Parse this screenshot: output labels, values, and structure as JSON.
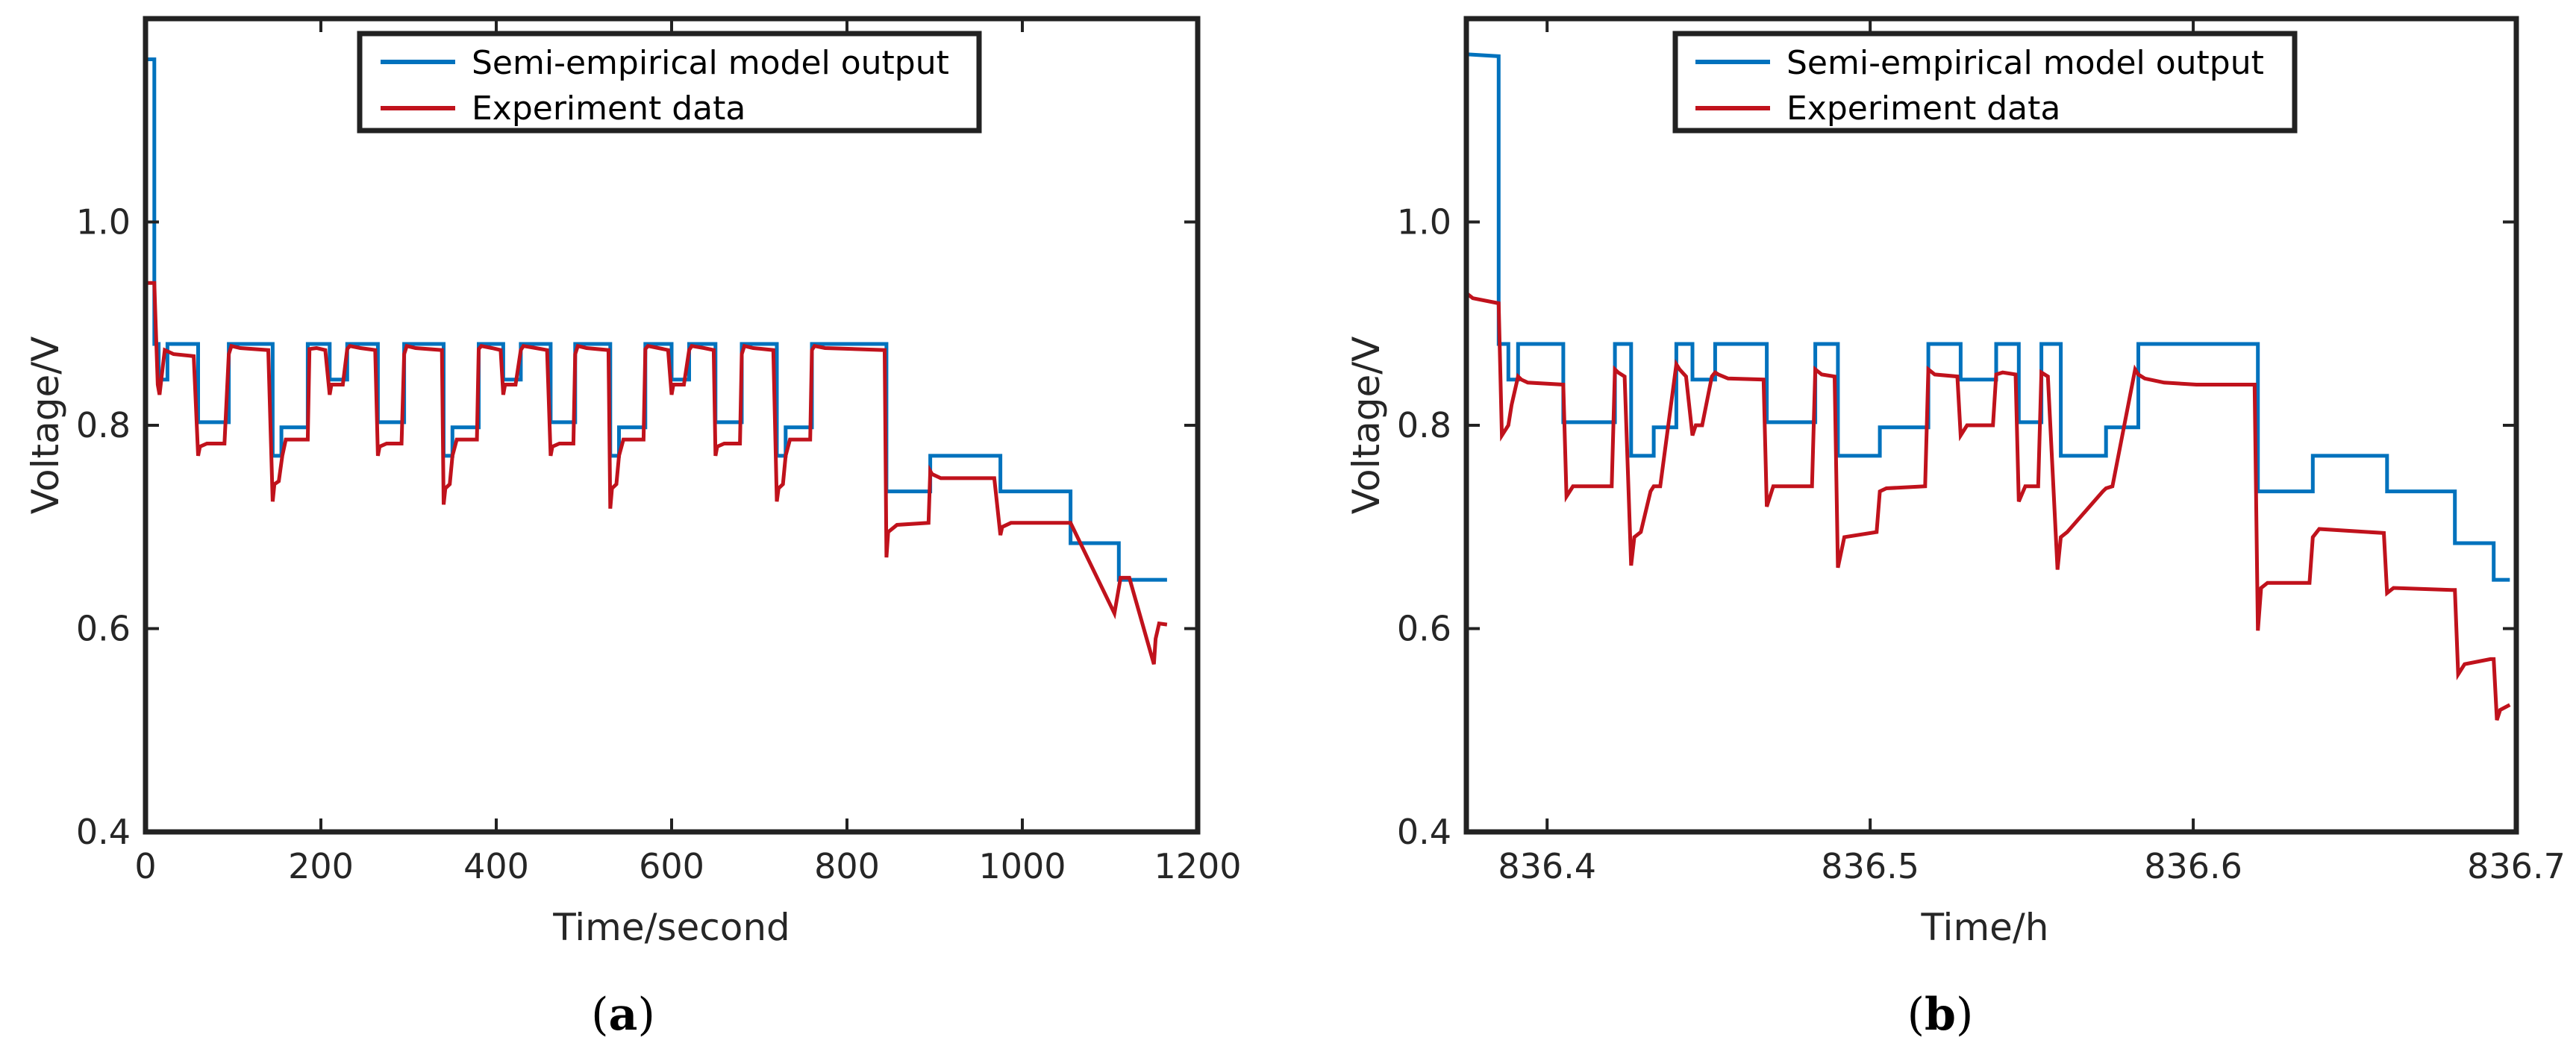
{
  "figure_captions": [
    {
      "open": "(",
      "letter": "a",
      "close": ")"
    },
    {
      "open": "(",
      "letter": "b",
      "close": ")"
    }
  ],
  "colors": {
    "model": "#0072BD",
    "experiment": "#C0121C"
  },
  "chart_data": [
    {
      "type": "line",
      "xlabel": "Time/second",
      "ylabel": "Voltage/V",
      "xlim": [
        0,
        1200
      ],
      "ylim": [
        0.4,
        1.2
      ],
      "xticks": [
        0,
        200,
        400,
        600,
        800,
        1000,
        1200
      ],
      "xtick_labels": [
        "0",
        "200",
        "400",
        "600",
        "800",
        "1000",
        "1200"
      ],
      "yticks": [
        0.4,
        0.6,
        0.8,
        1.0
      ],
      "ytick_labels": [
        "0.4",
        "0.6",
        "0.8",
        "1.0"
      ],
      "legend": [
        "Semi-empirical model output",
        "Experiment data"
      ],
      "legend_position": "top-center",
      "series": [
        {
          "name": "Semi-empirical model output",
          "color": "#0072BD",
          "x": [
            0,
            10,
            10,
            15,
            15,
            25,
            25,
            60,
            60,
            95,
            95,
            145,
            145,
            155,
            155,
            185,
            185,
            210,
            210,
            230,
            230,
            265,
            265,
            295,
            295,
            340,
            340,
            350,
            350,
            380,
            380,
            408,
            408,
            428,
            428,
            462,
            462,
            490,
            490,
            530,
            530,
            540,
            540,
            570,
            570,
            600,
            600,
            620,
            620,
            650,
            650,
            680,
            680,
            720,
            720,
            730,
            730,
            760,
            760,
            845,
            845,
            895,
            895,
            975,
            975,
            1055,
            1055,
            1110,
            1110,
            1165
          ],
          "y": [
            1.16,
            1.16,
            0.88,
            0.88,
            0.845,
            0.845,
            0.88,
            0.88,
            0.803,
            0.803,
            0.88,
            0.88,
            0.77,
            0.77,
            0.798,
            0.798,
            0.88,
            0.88,
            0.845,
            0.845,
            0.88,
            0.88,
            0.803,
            0.803,
            0.88,
            0.88,
            0.77,
            0.77,
            0.798,
            0.798,
            0.88,
            0.88,
            0.845,
            0.845,
            0.88,
            0.88,
            0.803,
            0.803,
            0.88,
            0.88,
            0.77,
            0.77,
            0.798,
            0.798,
            0.88,
            0.88,
            0.845,
            0.845,
            0.88,
            0.88,
            0.803,
            0.803,
            0.88,
            0.88,
            0.77,
            0.77,
            0.798,
            0.798,
            0.88,
            0.88,
            0.735,
            0.735,
            0.77,
            0.77,
            0.735,
            0.735,
            0.684,
            0.684,
            0.648,
            0.648
          ]
        },
        {
          "name": "Experiment data",
          "color": "#C0121C",
          "x": [
            0,
            10,
            11,
            14,
            16,
            20,
            22,
            27,
            32,
            55,
            60,
            62,
            70,
            90,
            95,
            98,
            108,
            140,
            145,
            147,
            152,
            156,
            160,
            185,
            187,
            195,
            205,
            210,
            212,
            225,
            230,
            233,
            245,
            262,
            265,
            267,
            275,
            292,
            295,
            298,
            308,
            338,
            340,
            342,
            347,
            350,
            355,
            378,
            380,
            383,
            395,
            405,
            408,
            410,
            422,
            428,
            431,
            445,
            458,
            462,
            464,
            472,
            488,
            490,
            493,
            503,
            528,
            530,
            532,
            537,
            540,
            545,
            568,
            570,
            573,
            585,
            596,
            600,
            602,
            614,
            620,
            623,
            637,
            648,
            650,
            652,
            660,
            678,
            680,
            683,
            693,
            716,
            720,
            722,
            727,
            730,
            735,
            758,
            760,
            763,
            775,
            843,
            845,
            847,
            857,
            893,
            895,
            897,
            907,
            968,
            975,
            977,
            987,
            1055,
            1105,
            1110,
            1112,
            1122,
            1150,
            1152,
            1156,
            1165
          ],
          "y": [
            0.94,
            0.94,
            0.915,
            0.84,
            0.83,
            0.86,
            0.874,
            0.872,
            0.87,
            0.868,
            0.77,
            0.779,
            0.782,
            0.782,
            0.87,
            0.878,
            0.876,
            0.874,
            0.725,
            0.742,
            0.745,
            0.77,
            0.786,
            0.786,
            0.875,
            0.876,
            0.874,
            0.83,
            0.84,
            0.84,
            0.875,
            0.878,
            0.876,
            0.874,
            0.77,
            0.779,
            0.782,
            0.782,
            0.87,
            0.878,
            0.876,
            0.874,
            0.722,
            0.738,
            0.742,
            0.77,
            0.786,
            0.786,
            0.875,
            0.878,
            0.876,
            0.874,
            0.83,
            0.84,
            0.84,
            0.874,
            0.878,
            0.876,
            0.874,
            0.77,
            0.779,
            0.782,
            0.782,
            0.87,
            0.878,
            0.876,
            0.874,
            0.718,
            0.738,
            0.742,
            0.77,
            0.786,
            0.786,
            0.875,
            0.878,
            0.876,
            0.874,
            0.83,
            0.84,
            0.84,
            0.874,
            0.878,
            0.876,
            0.874,
            0.77,
            0.779,
            0.782,
            0.782,
            0.87,
            0.878,
            0.876,
            0.874,
            0.725,
            0.738,
            0.742,
            0.77,
            0.786,
            0.786,
            0.874,
            0.878,
            0.876,
            0.874,
            0.67,
            0.695,
            0.702,
            0.704,
            0.755,
            0.752,
            0.748,
            0.748,
            0.692,
            0.7,
            0.704,
            0.704,
            0.615,
            0.64,
            0.65,
            0.65,
            0.565,
            0.59,
            0.605,
            0.604
          ]
        }
      ]
    },
    {
      "type": "line",
      "xlabel": "Time/h",
      "ylabel": "Voltage/V",
      "xlim": [
        836.375,
        836.7
      ],
      "ylim": [
        0.4,
        1.2
      ],
      "xticks": [
        836.4,
        836.5,
        836.6,
        836.7
      ],
      "xtick_labels": [
        "836.4",
        "836.5",
        "836.6",
        "836.7"
      ],
      "yticks": [
        0.4,
        0.6,
        0.8,
        1.0
      ],
      "ytick_labels": [
        "0.4",
        "0.6",
        "0.8",
        "1.0"
      ],
      "legend": [
        "Semi-empirical model output",
        "Experiment data"
      ],
      "legend_position": "top-center",
      "series": [
        {
          "name": "Semi-empirical model output",
          "color": "#0072BD",
          "x": [
            836.375,
            836.385,
            836.385,
            836.388,
            836.388,
            836.391,
            836.391,
            836.405,
            836.405,
            836.421,
            836.421,
            836.426,
            836.426,
            836.433,
            836.433,
            836.44,
            836.44,
            836.445,
            836.445,
            836.452,
            836.452,
            836.468,
            836.468,
            836.483,
            836.483,
            836.49,
            836.49,
            836.503,
            836.503,
            836.518,
            836.518,
            836.528,
            836.528,
            836.539,
            836.539,
            836.546,
            836.546,
            836.553,
            836.553,
            836.559,
            836.559,
            836.573,
            836.573,
            836.583,
            836.583,
            836.62,
            836.62,
            836.637,
            836.637,
            836.66,
            836.66,
            836.681,
            836.681,
            836.693,
            836.693,
            836.698
          ],
          "y": [
            1.165,
            1.163,
            0.88,
            0.88,
            0.845,
            0.845,
            0.88,
            0.88,
            0.803,
            0.803,
            0.88,
            0.88,
            0.77,
            0.77,
            0.798,
            0.798,
            0.88,
            0.88,
            0.845,
            0.845,
            0.88,
            0.88,
            0.803,
            0.803,
            0.88,
            0.88,
            0.77,
            0.77,
            0.798,
            0.798,
            0.88,
            0.88,
            0.845,
            0.845,
            0.88,
            0.88,
            0.803,
            0.803,
            0.88,
            0.88,
            0.77,
            0.77,
            0.798,
            0.798,
            0.88,
            0.88,
            0.735,
            0.735,
            0.77,
            0.77,
            0.735,
            0.735,
            0.684,
            0.684,
            0.648,
            0.648
          ]
        },
        {
          "name": "Experiment data",
          "color": "#C0121C",
          "x": [
            836.375,
            836.377,
            836.385,
            836.386,
            836.388,
            836.389,
            836.391,
            836.392,
            836.394,
            836.405,
            836.406,
            836.408,
            836.42,
            836.421,
            836.422,
            836.424,
            836.426,
            836.427,
            836.429,
            836.432,
            836.433,
            836.435,
            836.44,
            836.441,
            836.443,
            836.445,
            836.446,
            836.448,
            836.451,
            836.452,
            836.453,
            836.456,
            836.467,
            836.468,
            836.47,
            836.482,
            836.483,
            836.485,
            836.489,
            836.49,
            836.492,
            836.502,
            836.503,
            836.505,
            836.517,
            836.518,
            836.52,
            836.527,
            836.528,
            836.53,
            836.538,
            836.539,
            836.541,
            836.545,
            836.546,
            836.548,
            836.552,
            836.553,
            836.555,
            836.558,
            836.559,
            836.561,
            836.572,
            836.573,
            836.575,
            836.582,
            836.583,
            836.585,
            836.591,
            836.601,
            836.619,
            836.62,
            836.621,
            836.623,
            836.636,
            836.637,
            836.639,
            836.659,
            836.66,
            836.662,
            836.68,
            836.681,
            836.682,
            836.684,
            836.692,
            836.693,
            836.694,
            836.695,
            836.698
          ],
          "y": [
            0.93,
            0.925,
            0.92,
            0.79,
            0.8,
            0.82,
            0.848,
            0.845,
            0.842,
            0.84,
            0.73,
            0.74,
            0.74,
            0.855,
            0.852,
            0.848,
            0.662,
            0.69,
            0.695,
            0.735,
            0.74,
            0.74,
            0.86,
            0.855,
            0.848,
            0.79,
            0.8,
            0.8,
            0.848,
            0.852,
            0.85,
            0.846,
            0.845,
            0.72,
            0.74,
            0.74,
            0.855,
            0.85,
            0.848,
            0.66,
            0.69,
            0.695,
            0.735,
            0.738,
            0.74,
            0.855,
            0.85,
            0.848,
            0.79,
            0.8,
            0.8,
            0.85,
            0.852,
            0.85,
            0.725,
            0.74,
            0.74,
            0.852,
            0.848,
            0.658,
            0.69,
            0.695,
            0.735,
            0.738,
            0.74,
            0.855,
            0.85,
            0.846,
            0.842,
            0.84,
            0.84,
            0.598,
            0.64,
            0.645,
            0.645,
            0.69,
            0.698,
            0.694,
            0.635,
            0.64,
            0.638,
            0.638,
            0.555,
            0.565,
            0.57,
            0.57,
            0.51,
            0.52,
            0.525
          ]
        }
      ]
    }
  ]
}
